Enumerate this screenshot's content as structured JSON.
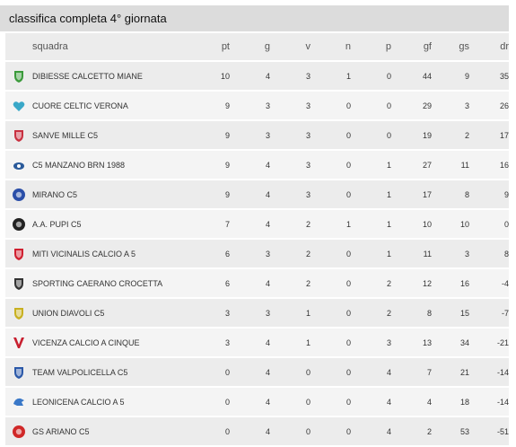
{
  "title": "classifica completa 4° giornata",
  "columns": {
    "team": "squadra",
    "pt": "pt",
    "g": "g",
    "v": "v",
    "n": "n",
    "p": "p",
    "gf": "gf",
    "gs": "gs",
    "dr": "dr"
  },
  "rows": [
    {
      "team": "DIBIESSE CALCETTO MIANE",
      "pt": "10",
      "g": "4",
      "v": "3",
      "n": "1",
      "p": "0",
      "gf": "44",
      "gs": "9",
      "dr": "35",
      "logo": "shield-green-icon",
      "color": "#3a9a3a"
    },
    {
      "team": "CUORE CELTIC VERONA",
      "pt": "9",
      "g": "3",
      "v": "3",
      "n": "0",
      "p": "0",
      "gf": "29",
      "gs": "3",
      "dr": "26",
      "logo": "heart-icon",
      "color": "#3aa8c8"
    },
    {
      "team": "SANVE MILLE C5",
      "pt": "9",
      "g": "3",
      "v": "3",
      "n": "0",
      "p": "0",
      "gf": "19",
      "gs": "2",
      "dr": "17",
      "logo": "shield-red-icon",
      "color": "#c83040"
    },
    {
      "team": "C5 MANZANO BRN 1988",
      "pt": "9",
      "g": "4",
      "v": "3",
      "n": "0",
      "p": "1",
      "gf": "27",
      "gs": "11",
      "dr": "16",
      "logo": "ball-blue-icon",
      "color": "#2a5a9a"
    },
    {
      "team": "MIRANO C5",
      "pt": "9",
      "g": "4",
      "v": "3",
      "n": "0",
      "p": "1",
      "gf": "17",
      "gs": "8",
      "dr": "9",
      "logo": "circle-blue-icon",
      "color": "#2a4ea8"
    },
    {
      "team": "A.A. PUPI C5",
      "pt": "7",
      "g": "4",
      "v": "2",
      "n": "1",
      "p": "1",
      "gf": "10",
      "gs": "10",
      "dr": "0",
      "logo": "circle-black-icon",
      "color": "#222222"
    },
    {
      "team": "MITI VICINALIS CALCIO A 5",
      "pt": "6",
      "g": "3",
      "v": "2",
      "n": "0",
      "p": "1",
      "gf": "11",
      "gs": "3",
      "dr": "8",
      "logo": "shield-red-white-icon",
      "color": "#d02030"
    },
    {
      "team": "SPORTING CAERANO CROCETTA",
      "pt": "6",
      "g": "4",
      "v": "2",
      "n": "0",
      "p": "2",
      "gf": "12",
      "gs": "16",
      "dr": "-4",
      "logo": "shield-black-red-icon",
      "color": "#333333"
    },
    {
      "team": "UNION DIAVOLI C5",
      "pt": "3",
      "g": "3",
      "v": "1",
      "n": "0",
      "p": "2",
      "gf": "8",
      "gs": "15",
      "dr": "-7",
      "logo": "shield-black-yellow-icon",
      "color": "#c8b020"
    },
    {
      "team": "VICENZA CALCIO A CINQUE",
      "pt": "3",
      "g": "4",
      "v": "1",
      "n": "0",
      "p": "3",
      "gf": "13",
      "gs": "34",
      "dr": "-21",
      "logo": "v-red-icon",
      "color": "#c82030"
    },
    {
      "team": "TEAM VALPOLICELLA C5",
      "pt": "0",
      "g": "4",
      "v": "0",
      "n": "0",
      "p": "4",
      "gf": "7",
      "gs": "21",
      "dr": "-14",
      "logo": "shield-yellow-blue-icon",
      "color": "#2a58a8"
    },
    {
      "team": "LEONICENA CALCIO A 5",
      "pt": "0",
      "g": "4",
      "v": "0",
      "n": "0",
      "p": "4",
      "gf": "4",
      "gs": "18",
      "dr": "-14",
      "logo": "lion-blue-icon",
      "color": "#3a78c8"
    },
    {
      "team": "GS ARIANO C5",
      "pt": "0",
      "g": "4",
      "v": "0",
      "n": "0",
      "p": "4",
      "gf": "2",
      "gs": "53",
      "dr": "-51",
      "logo": "circle-red-icon",
      "color": "#d02828"
    }
  ]
}
